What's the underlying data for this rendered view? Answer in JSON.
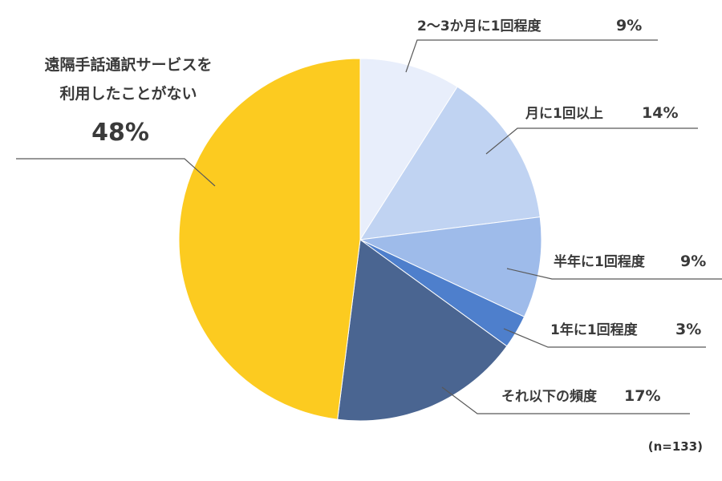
{
  "chart_data": {
    "type": "pie",
    "start": "12 o'clock, clockwise",
    "slices": [
      {
        "label": "2～3か月に1回程度",
        "value": 9,
        "pct_text": "9%",
        "color": "#e8eefb"
      },
      {
        "label": "月に1回以上",
        "value": 14,
        "pct_text": "14%",
        "color": "#c0d3f2"
      },
      {
        "label": "半年に1回程度",
        "value": 9,
        "pct_text": "9%",
        "color": "#9ebbea"
      },
      {
        "label": "1年に1回程度",
        "value": 3,
        "pct_text": "3%",
        "color": "#4e7fcc"
      },
      {
        "label": "それ以下の頻度",
        "value": 17,
        "pct_text": "17%",
        "color": "#4a6591"
      },
      {
        "label_lines": [
          "遠隔手話通訳サービスを",
          "利用したことがない"
        ],
        "value": 48,
        "pct_text": "48%",
        "color": "#fccb20"
      }
    ]
  },
  "note": "(n=133)"
}
